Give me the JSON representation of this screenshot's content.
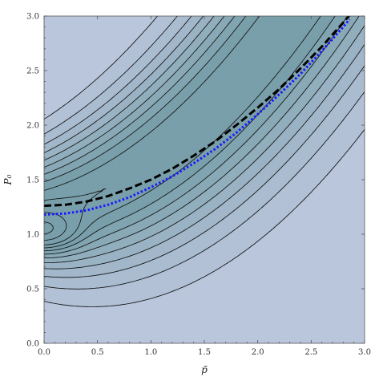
{
  "chart_data": {
    "type": "contour",
    "title": "",
    "xlabel": "p̄",
    "ylabel": "P₀",
    "xlim": [
      0,
      3
    ],
    "ylim": [
      0,
      3
    ],
    "xticks": [
      "0.0",
      "0.5",
      "1.0",
      "1.5",
      "2.0",
      "2.5",
      "3.0"
    ],
    "yticks": [
      "0.0",
      "0.5",
      "1.0",
      "1.5",
      "2.0",
      "2.5",
      "3.0"
    ],
    "grid": false,
    "colors": {
      "background_light": "#bac6dc",
      "band_mid": "#9fb6c2",
      "band_dark": "#7a9faa",
      "contour_line": "#111111",
      "dashed_black": "#000000",
      "dotted_blue": "#1a1aff"
    },
    "series": [
      {
        "style": "dashed",
        "color": "#000000",
        "x": [
          0.0,
          0.2,
          0.4,
          0.6,
          0.8,
          1.0,
          1.2,
          1.4,
          1.6,
          1.8,
          2.0,
          2.2,
          2.4,
          2.6,
          2.8,
          2.87
        ],
        "y": [
          1.26,
          1.27,
          1.3,
          1.35,
          1.42,
          1.5,
          1.6,
          1.72,
          1.85,
          2.0,
          2.16,
          2.33,
          2.52,
          2.72,
          2.94,
          3.02
        ]
      },
      {
        "style": "dotted",
        "color": "#1a1aff",
        "x": [
          0.0,
          0.2,
          0.4,
          0.6,
          0.8,
          1.0,
          1.2,
          1.4,
          1.6,
          1.8,
          2.0,
          2.2,
          2.4,
          2.6,
          2.8,
          2.86
        ],
        "y": [
          1.18,
          1.19,
          1.22,
          1.27,
          1.34,
          1.43,
          1.53,
          1.65,
          1.78,
          1.93,
          2.1,
          2.28,
          2.47,
          2.68,
          2.9,
          2.97
        ]
      }
    ]
  }
}
